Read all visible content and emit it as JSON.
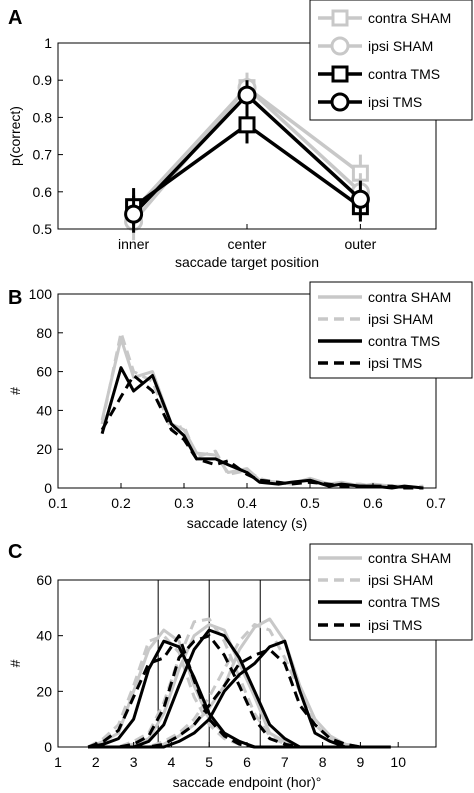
{
  "colors": {
    "sham": "#c8c8c8",
    "tms": "#000000",
    "vline": "#000000"
  },
  "chart_data": [
    {
      "panel": "A",
      "type": "line",
      "xlabel": "saccade target position",
      "ylabel": "p(correct)",
      "categories": [
        "inner",
        "center",
        "outer"
      ],
      "ylim": [
        0.5,
        1
      ],
      "yticks": [
        "0.5",
        "0.6",
        "0.7",
        "0.8",
        "0.9",
        "1"
      ],
      "legend_placement": "top-right",
      "series": [
        {
          "name": "contra SHAM",
          "values": [
            0.55,
            0.88,
            0.65
          ],
          "err": [
            0.05,
            0.04,
            0.05
          ],
          "color": "#c8c8c8",
          "marker": "square",
          "dash": "solid"
        },
        {
          "name": "ipsi SHAM",
          "values": [
            0.52,
            0.88,
            0.6
          ],
          "err": [
            0.05,
            0.04,
            0.05
          ],
          "color": "#c8c8c8",
          "marker": "circle",
          "dash": "solid"
        },
        {
          "name": "contra TMS",
          "values": [
            0.56,
            0.78,
            0.56
          ],
          "err": [
            0.05,
            0.05,
            0.04
          ],
          "color": "#000000",
          "marker": "square",
          "dash": "solid"
        },
        {
          "name": "ipsi TMS",
          "values": [
            0.54,
            0.86,
            0.58
          ],
          "err": [
            0.05,
            0.04,
            0.05
          ],
          "color": "#000000",
          "marker": "circle",
          "dash": "solid"
        }
      ]
    },
    {
      "panel": "B",
      "type": "line",
      "xlabel": "saccade latency (s)",
      "ylabel": "#",
      "xlim": [
        0.1,
        0.7
      ],
      "ylim": [
        0,
        100
      ],
      "xticks": [
        "0.1",
        "0.2",
        "0.3",
        "0.4",
        "0.5",
        "0.6",
        "0.7"
      ],
      "yticks": [
        "0",
        "20",
        "40",
        "60",
        "80",
        "100"
      ],
      "legend_placement": "top-right",
      "x": [
        0.17,
        0.2,
        0.22,
        0.25,
        0.28,
        0.3,
        0.32,
        0.35,
        0.37,
        0.4,
        0.42,
        0.45,
        0.47,
        0.5,
        0.53,
        0.55,
        0.58,
        0.6,
        0.63,
        0.65,
        0.68
      ],
      "series": [
        {
          "name": "contra SHAM",
          "values": [
            35,
            77,
            57,
            60,
            33,
            30,
            18,
            17,
            8,
            10,
            4,
            3,
            2,
            5,
            2,
            3,
            1,
            2,
            1,
            1,
            0
          ],
          "color": "#c8c8c8",
          "dash": "solid"
        },
        {
          "name": "ipsi SHAM",
          "values": [
            33,
            80,
            60,
            55,
            30,
            32,
            16,
            19,
            7,
            9,
            5,
            2,
            3,
            4,
            2,
            2,
            2,
            1,
            1,
            0,
            1
          ],
          "color": "#c8c8c8",
          "dash": "dashed"
        },
        {
          "name": "contra TMS",
          "values": [
            28,
            62,
            50,
            58,
            33,
            27,
            15,
            15,
            12,
            8,
            3,
            2,
            3,
            4,
            1,
            2,
            1,
            1,
            0,
            1,
            0
          ],
          "color": "#000000",
          "dash": "solid"
        },
        {
          "name": "ipsi TMS",
          "values": [
            30,
            47,
            58,
            50,
            30,
            25,
            15,
            12,
            14,
            7,
            4,
            3,
            2,
            3,
            2,
            1,
            1,
            1,
            1,
            0,
            0
          ],
          "color": "#000000",
          "dash": "dashed"
        }
      ]
    },
    {
      "panel": "C",
      "type": "line",
      "xlabel": "saccade endpoint (hor)°",
      "ylabel": "#",
      "xlim": [
        1,
        11
      ],
      "ylim": [
        0,
        60
      ],
      "xticks": [
        "1",
        "2",
        "3",
        "4",
        "5",
        "6",
        "7",
        "8",
        "9",
        "10"
      ],
      "yticks": [
        "0",
        "20",
        "40",
        "60"
      ],
      "vlines": [
        3.65,
        5.0,
        6.35
      ],
      "legend_placement": "top-right",
      "x": [
        1.8,
        2.2,
        2.6,
        3.0,
        3.4,
        3.8,
        4.2,
        4.6,
        5.0,
        5.4,
        5.8,
        6.2,
        6.6,
        7.0,
        7.4,
        7.8,
        8.2,
        8.6,
        9.0,
        9.4,
        9.8
      ],
      "series": [
        {
          "name": "contra SHAM",
          "color": "#c8c8c8",
          "dash": "solid",
          "curves": [
            [
              0,
              2,
              5,
              20,
              35,
              42,
              38,
              22,
              10,
              5,
              2,
              0,
              0,
              0,
              0,
              0,
              0,
              0,
              0,
              0,
              0
            ],
            [
              0,
              0,
              0,
              1,
              3,
              12,
              28,
              40,
              44,
              42,
              30,
              18,
              5,
              2,
              0,
              0,
              0,
              0,
              0,
              0,
              0
            ],
            [
              0,
              0,
              0,
              0,
              0,
              1,
              4,
              8,
              14,
              22,
              35,
              43,
              46,
              38,
              22,
              10,
              4,
              1,
              0,
              0,
              0
            ]
          ]
        },
        {
          "name": "ipsi SHAM",
          "color": "#c8c8c8",
          "dash": "dashed",
          "curves": [
            [
              0,
              3,
              8,
              22,
              38,
              40,
              34,
              18,
              8,
              3,
              1,
              0,
              0,
              0,
              0,
              0,
              0,
              0,
              0,
              0,
              0
            ],
            [
              0,
              0,
              0,
              2,
              5,
              16,
              32,
              45,
              46,
              38,
              25,
              12,
              4,
              1,
              0,
              0,
              0,
              0,
              0,
              0,
              0
            ],
            [
              0,
              0,
              0,
              0,
              0,
              2,
              5,
              10,
              18,
              28,
              38,
              44,
              42,
              32,
              20,
              8,
              3,
              1,
              0,
              0,
              0
            ]
          ]
        },
        {
          "name": "contra TMS",
          "color": "#000000",
          "dash": "solid",
          "curves": [
            [
              0,
              1,
              3,
              10,
              28,
              38,
              36,
              25,
              12,
              5,
              2,
              0,
              0,
              0,
              0,
              0,
              0,
              0,
              0,
              0,
              0
            ],
            [
              0,
              0,
              0,
              0,
              2,
              8,
              22,
              35,
              42,
              40,
              32,
              20,
              8,
              3,
              0,
              0,
              0,
              0,
              0,
              0,
              0
            ],
            [
              0,
              0,
              0,
              0,
              0,
              0,
              2,
              5,
              10,
              20,
              26,
              30,
              36,
              38,
              20,
              5,
              2,
              0,
              0,
              0,
              0
            ]
          ]
        },
        {
          "name": "ipsi TMS",
          "color": "#000000",
          "dash": "dashed",
          "curves": [
            [
              0,
              2,
              6,
              18,
              30,
              32,
              40,
              24,
              10,
              4,
              1,
              0,
              0,
              0,
              0,
              0,
              0,
              0,
              0,
              0,
              0
            ],
            [
              0,
              0,
              0,
              1,
              4,
              14,
              32,
              38,
              40,
              33,
              22,
              10,
              3,
              1,
              0,
              0,
              0,
              0,
              0,
              0,
              0
            ],
            [
              0,
              0,
              0,
              0,
              0,
              1,
              4,
              8,
              15,
              22,
              30,
              33,
              35,
              30,
              15,
              8,
              3,
              1,
              0,
              0,
              0
            ]
          ]
        }
      ]
    }
  ]
}
